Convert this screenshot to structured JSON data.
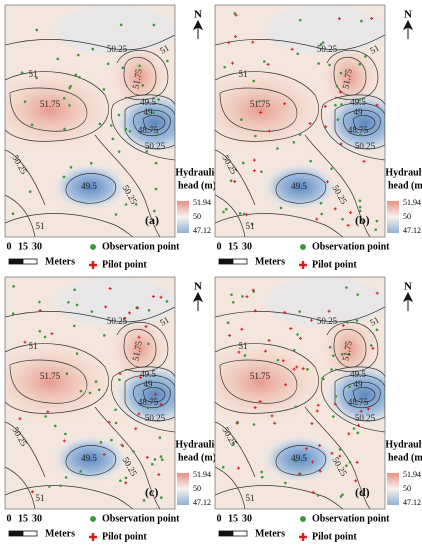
{
  "panels": [
    {
      "label": "(a)",
      "contour_labels": [
        "50.25",
        "51",
        "51",
        "51.75",
        "51.75",
        "49.5",
        "49",
        "48.75",
        "50.25",
        "50.25",
        "49.5",
        "50.25",
        "51"
      ]
    },
    {
      "label": "(b)",
      "contour_labels": [
        "50.25",
        "51",
        "51",
        "51.75",
        "51.75",
        "49.5",
        "49",
        "48.75",
        "50.25",
        "50.25",
        "49.5",
        "50.25",
        "51"
      ]
    },
    {
      "label": "(c)",
      "contour_labels": [
        "50.25",
        "51",
        "51",
        "51.75",
        "51.75",
        "49.5",
        "49",
        "48.75",
        "50.25",
        "50.25",
        "49.5",
        "50.25",
        "51"
      ]
    },
    {
      "label": "(d)",
      "contour_labels": [
        "50.25",
        "51",
        "51",
        "51.75",
        "51.75",
        "49.5",
        "49",
        "48.75",
        "50.25",
        "50.25",
        "49.5",
        "50.25",
        "51"
      ]
    }
  ],
  "north": "N",
  "legend": {
    "title_lines": [
      "Hydraulic",
      "head (m)"
    ],
    "ticks": [
      51.94,
      50,
      47.12
    ]
  },
  "scale_bar": {
    "ticks": [
      0,
      15,
      30
    ],
    "unit": "Meters"
  },
  "point_legend": [
    "Observation point",
    "Pilot point"
  ]
}
